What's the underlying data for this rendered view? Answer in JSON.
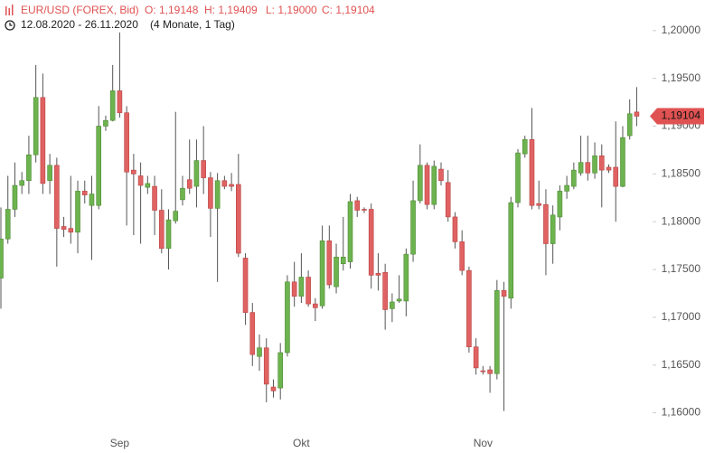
{
  "chart_data": {
    "type": "candlestick",
    "title": "EUR/USD (FOREX, Bid)",
    "ohlc_labels": [
      "O: 1,19148",
      "H: 1,19409",
      "L: 1,19000",
      "C: 1,19104"
    ],
    "date_range": "12.08.2020 - 26.11.2020",
    "period": "(4 Monate, 1 Tag)",
    "last_price_label": "1,19104",
    "categories": [
      null,
      null,
      null,
      null,
      null,
      null,
      null,
      null,
      null,
      null,
      null,
      null,
      null,
      null,
      null,
      null,
      null,
      "Sep",
      null,
      null,
      null,
      null,
      null,
      null,
      null,
      null,
      null,
      null,
      null,
      null,
      null,
      null,
      null,
      null,
      null,
      null,
      null,
      null,
      null,
      null,
      null,
      null,
      null,
      "Okt",
      null,
      null,
      null,
      null,
      null,
      null,
      null,
      null,
      null,
      null,
      null,
      null,
      null,
      null,
      null,
      null,
      null,
      null,
      null,
      null,
      null,
      null,
      null,
      null,
      null,
      "Nov",
      null,
      null,
      null,
      null,
      null,
      null,
      null,
      null,
      null,
      null,
      null,
      null,
      null,
      null,
      null,
      null,
      null,
      null,
      null,
      null,
      null,
      null
    ],
    "open": [
      1.1741,
      1.1782,
      1.1813,
      1.1838,
      1.1843,
      1.187,
      1.193,
      1.1843,
      1.1859,
      1.1795,
      1.1793,
      1.1789,
      1.1832,
      1.1817,
      1.1817,
      1.19,
      1.1906,
      1.1937,
      1.1914,
      1.1854,
      1.1848,
      1.1836,
      1.1837,
      1.1812,
      1.1772,
      1.1801,
      1.1823,
      1.1844,
      1.1837,
      1.1864,
      1.1846,
      1.1814,
      1.1843,
      1.1839,
      1.1839,
      1.1762,
      1.1705,
      1.1659,
      1.1668,
      1.1627,
      1.1626,
      1.1663,
      1.1737,
      1.1722,
      1.1742,
      1.1714,
      1.1712,
      1.178,
      1.1732,
      1.1756,
      1.1758,
      1.1822,
      1.1813,
      1.1813,
      1.1746,
      1.1747,
      1.1709,
      1.1717,
      1.1717,
      1.1766,
      1.1822,
      1.1859,
      1.1818,
      1.1855,
      1.1841,
      1.1805,
      1.1779,
      1.1749,
      1.1669,
      1.1644,
      1.1645,
      1.1641,
      1.1728,
      1.172,
      1.182,
      1.1871,
      1.1886,
      1.1819,
      1.1818,
      1.1777,
      1.1805,
      1.1832,
      1.1837,
      1.1851,
      1.1862,
      1.1851,
      1.1869,
      1.1857,
      1.1857,
      1.1837,
      1.189,
      1.19148
    ],
    "high": [
      1.1815,
      1.1848,
      1.1862,
      1.1852,
      1.189,
      1.1964,
      1.1955,
      1.1871,
      1.1867,
      1.1805,
      1.1848,
      1.1843,
      1.1843,
      1.1848,
      1.1921,
      1.1911,
      1.1964,
      1.1998,
      1.1921,
      1.1871,
      1.1862,
      1.1848,
      1.1848,
      1.1834,
      1.1813,
      1.1915,
      1.1848,
      1.1886,
      1.1886,
      1.19,
      1.1852,
      1.1851,
      1.1848,
      1.1851,
      1.1871,
      1.1767,
      1.1715,
      1.1682,
      1.1678,
      1.1635,
      1.1673,
      1.1744,
      1.1758,
      1.1767,
      1.1749,
      1.172,
      1.1796,
      1.1796,
      1.1777,
      1.1805,
      1.1829,
      1.1826,
      1.1815,
      1.1819,
      1.1767,
      1.1756,
      1.1725,
      1.1744,
      1.1772,
      1.1843,
      1.1881,
      1.1862,
      1.1864,
      1.1862,
      1.1854,
      1.181,
      1.1791,
      1.1753,
      1.1678,
      1.1649,
      1.1649,
      1.1739,
      1.1737,
      1.1826,
      1.1876,
      1.189,
      1.1919,
      1.1843,
      1.1834,
      1.1817,
      1.1838,
      1.1848,
      1.1862,
      1.189,
      1.189,
      1.1883,
      1.1881,
      1.186,
      1.1905,
      1.19,
      1.1928,
      1.19409
    ],
    "low": [
      1.1709,
      1.1777,
      1.1805,
      1.1829,
      1.1829,
      1.1862,
      1.1829,
      1.1829,
      1.1753,
      1.1784,
      1.1777,
      1.1767,
      1.1819,
      1.176,
      1.1813,
      1.1895,
      1.1905,
      1.1909,
      1.1796,
      1.1786,
      1.1777,
      1.1829,
      1.1786,
      1.1767,
      1.175,
      1.1798,
      1.1817,
      1.1829,
      1.1815,
      1.1829,
      1.1784,
      1.1737,
      1.1834,
      1.1832,
      1.1763,
      1.1692,
      1.1649,
      1.1644,
      1.1611,
      1.1616,
      1.1614,
      1.1659,
      1.1711,
      1.1715,
      1.1711,
      1.1696,
      1.1709,
      1.173,
      1.1725,
      1.1749,
      1.1751,
      1.1805,
      1.1809,
      1.173,
      1.1728,
      1.1687,
      1.1695,
      1.1715,
      1.1701,
      1.1758,
      1.1819,
      1.1813,
      1.1813,
      1.1838,
      1.18,
      1.1772,
      1.1744,
      1.1663,
      1.164,
      1.164,
      1.1621,
      1.1635,
      1.1602,
      1.1709,
      1.1815,
      1.1867,
      1.1813,
      1.1813,
      1.1744,
      1.1756,
      1.1791,
      1.1824,
      1.1834,
      1.1848,
      1.1843,
      1.1845,
      1.1815,
      1.1851,
      1.18,
      1.1836,
      1.1886,
      1.19
    ],
    "close": [
      1.1782,
      1.1813,
      1.1838,
      1.1843,
      1.187,
      1.193,
      1.184,
      1.1859,
      1.1793,
      1.1792,
      1.1789,
      1.1832,
      1.1828,
      1.1829,
      1.19,
      1.1906,
      1.1937,
      1.1914,
      1.1852,
      1.185,
      1.1838,
      1.184,
      1.1812,
      1.1772,
      1.1802,
      1.1811,
      1.1835,
      1.1835,
      1.1864,
      1.1846,
      1.1814,
      1.1843,
      1.1837,
      1.1837,
      1.1767,
      1.1705,
      1.1661,
      1.1668,
      1.163,
      1.1623,
      1.1663,
      1.1737,
      1.1722,
      1.1742,
      1.1714,
      1.171,
      1.178,
      1.1734,
      1.1763,
      1.1763,
      1.1821,
      1.1812,
      1.1812,
      1.1744,
      1.1744,
      1.1708,
      1.1716,
      1.1719,
      1.1766,
      1.1822,
      1.1859,
      1.1818,
      1.1858,
      1.1843,
      1.1805,
      1.1779,
      1.1749,
      1.1669,
      1.1647,
      1.1643,
      1.1641,
      1.1728,
      1.1722,
      1.182,
      1.1872,
      1.1886,
      1.1817,
      1.1817,
      1.1777,
      1.1807,
      1.1832,
      1.1838,
      1.1854,
      1.1862,
      1.1851,
      1.1869,
      1.1854,
      1.1854,
      1.1837,
      1.1888,
      1.1913,
      1.19104
    ],
    "up_color": "#6db34f",
    "down_color": "#e06262",
    "ylim": [
      1.1575,
      1.2032
    ],
    "yticks": [
      {
        "value": 1.16,
        "label": "1,16000"
      },
      {
        "value": 1.165,
        "label": "1,16500"
      },
      {
        "value": 1.17,
        "label": "1,17000"
      },
      {
        "value": 1.175,
        "label": "1,17500"
      },
      {
        "value": 1.18,
        "label": "1,18000"
      },
      {
        "value": 1.185,
        "label": "1,18500"
      },
      {
        "value": 1.19,
        "label": "1,19000"
      },
      {
        "value": 1.195,
        "label": "1,19500"
      },
      {
        "value": 1.2,
        "label": "1,20000"
      }
    ],
    "grid": false
  }
}
